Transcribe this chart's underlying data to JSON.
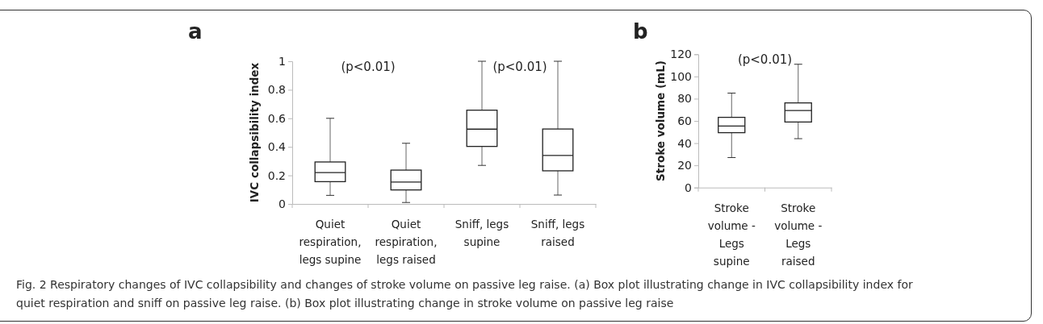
{
  "chart_data": [
    {
      "type": "box",
      "title": "a",
      "ylabel": "IVC collapsibility index",
      "categories": [
        "Quiet respiration, legs supine",
        "Quiet respiration, legs raised",
        "Sniff, legs supine",
        "Sniff, legs raised"
      ],
      "boxes": [
        {
          "low": 0.06,
          "q1": 0.156,
          "median": 0.22,
          "q3": 0.294,
          "high": 0.6
        },
        {
          "low": 0.01,
          "q1": 0.098,
          "median": 0.153,
          "q3": 0.237,
          "high": 0.425
        },
        {
          "low": 0.27,
          "q1": 0.403,
          "median": 0.524,
          "q3": 0.657,
          "high": 1
        },
        {
          "low": 0.062,
          "q1": 0.232,
          "median": 0.34,
          "q3": 0.525,
          "high": 1
        }
      ],
      "ylim": [
        0,
        1
      ],
      "yticks": [
        0,
        0.2,
        0.4,
        0.6,
        0.8,
        1
      ],
      "grid": false,
      "annotations": [
        "(p<0.01)",
        "(p<0.01)",
        "Fig. 2 Respiratory changes of IVC collapsibility and changes of stroke volume on passive leg raise. (a) Box plot illustrating change in IVC collapsibility index for quiet respiration and sniff on passive leg raise. (b) Box plot illustrating change in stroke volume on passive leg raise"
      ]
    },
    {
      "type": "box",
      "title": "b",
      "ylabel": "Stroke volume (mL)",
      "categories": [
        "Stroke volume - Legs supine",
        "Stroke volume - Legs raised"
      ],
      "boxes": [
        {
          "low": 27,
          "q1": 49.4,
          "median": 55.4,
          "q3": 63.2,
          "high": 85
        },
        {
          "low": 44,
          "q1": 59,
          "median": 69.4,
          "q3": 76.2,
          "high": 111
        }
      ],
      "ylim": [
        0,
        120
      ],
      "yticks": [
        0,
        20,
        40,
        60,
        80,
        100,
        120
      ],
      "grid": false,
      "annotations": [
        "(p<0.01)"
      ]
    }
  ]
}
